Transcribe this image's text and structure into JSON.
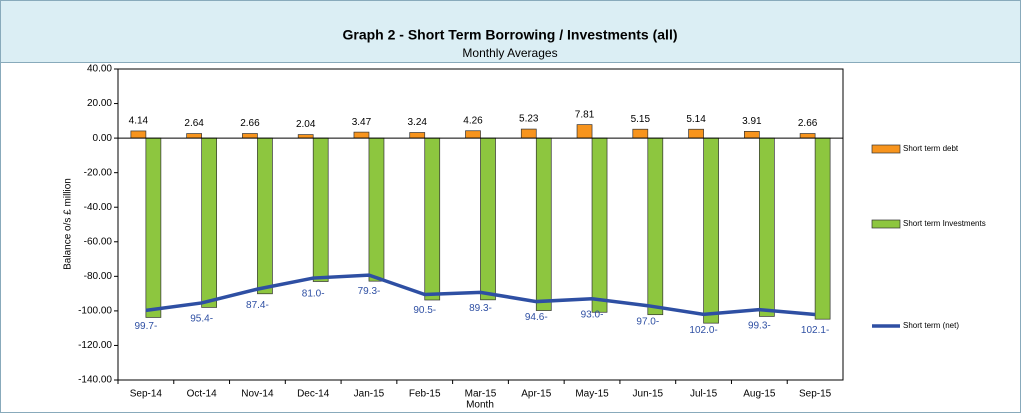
{
  "chart_data": {
    "type": "bar",
    "title": "Graph 2 - Short Term Borrowing / Investments (all)",
    "subtitle": "Monthly Averages",
    "x_label": "Month",
    "y_label": "Balance o/s £ million",
    "categories": [
      "Sep-14",
      "Oct-14",
      "Nov-14",
      "Dec-14",
      "Jan-15",
      "Feb-15",
      "Mar-15",
      "Apr-15",
      "May-15",
      "Jun-15",
      "Jul-15",
      "Aug-15",
      "Sep-15"
    ],
    "series": [
      {
        "name": "Short term debt",
        "type": "bar",
        "color": "#f7941d",
        "values": [
          4.14,
          2.64,
          2.66,
          2.04,
          3.47,
          3.24,
          4.26,
          5.23,
          7.81,
          5.15,
          5.14,
          3.91,
          2.66
        ]
      },
      {
        "name": "Short term Investments",
        "type": "bar",
        "color": "#8dc63f",
        "values": [
          -103.8,
          -98.0,
          -90.1,
          -83.0,
          -82.8,
          -93.7,
          -93.6,
          -99.8,
          -100.8,
          -102.2,
          -107.1,
          -103.2,
          -104.8
        ]
      },
      {
        "name": "Short term (net)",
        "type": "line",
        "color": "#2e4fa3",
        "values": [
          -99.7,
          -95.4,
          -87.4,
          -81.0,
          -79.3,
          -90.5,
          -89.3,
          -94.6,
          -93.0,
          -97.0,
          -102.0,
          -99.3,
          -102.1
        ],
        "value_labels": [
          "99.7-",
          "95.4-",
          "87.4-",
          "81.0-",
          "79.3-",
          "90.5-",
          "89.3-",
          "94.6-",
          "93.0-",
          "97.0-",
          "102.0-",
          "99.3-",
          "102.1-"
        ]
      }
    ],
    "ylim": [
      -140,
      40
    ],
    "yticks": [
      {
        "value": 40,
        "label": "40.00"
      },
      {
        "value": 20,
        "label": "20.00"
      },
      {
        "value": 0,
        "label": "0.00"
      },
      {
        "value": -20,
        "label": "-20.00"
      },
      {
        "value": -40,
        "label": "-40.00"
      },
      {
        "value": -60,
        "label": "-60.00"
      },
      {
        "value": -80,
        "label": "-80.00"
      },
      {
        "value": -100,
        "label": "-100.00"
      },
      {
        "value": -120,
        "label": "-120.00"
      },
      {
        "value": -140,
        "label": "-140.00"
      }
    ],
    "legend": "right"
  }
}
